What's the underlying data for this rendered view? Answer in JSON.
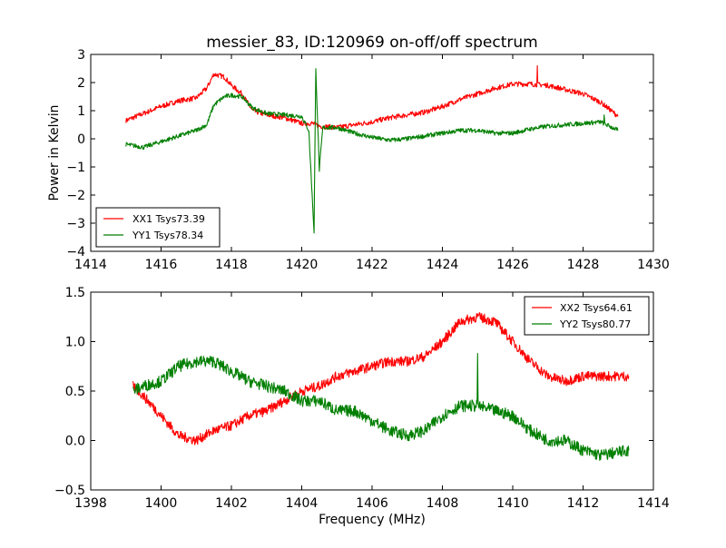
{
  "figure": {
    "title": "messier_83, ID:120969 on-off/off spectrum"
  },
  "chart_data": [
    {
      "type": "line",
      "title": "messier_83, ID:120969 on-off/off spectrum",
      "xlabel": "",
      "ylabel": "Power in Kelvin",
      "xlim": [
        1414,
        1430
      ],
      "ylim": [
        -4,
        3
      ],
      "xticks": [
        1414,
        1416,
        1418,
        1420,
        1422,
        1424,
        1426,
        1428,
        1430
      ],
      "yticks": [
        -4,
        -3,
        -2,
        -1,
        0,
        1,
        2,
        3
      ],
      "grid": false,
      "legend": {
        "placement": "lower-left"
      },
      "series": [
        {
          "name": "XX1 Tsys73.39",
          "color": "#ff0000",
          "x": [
            1415.0,
            1415.5,
            1416.0,
            1416.5,
            1417.0,
            1417.3,
            1417.5,
            1417.8,
            1418.0,
            1418.3,
            1418.6,
            1419.0,
            1419.5,
            1420.0,
            1420.3,
            1420.5,
            1421.0,
            1421.5,
            1422.0,
            1422.5,
            1423.0,
            1423.5,
            1424.0,
            1424.5,
            1425.0,
            1425.5,
            1426.0,
            1426.5,
            1427.0,
            1427.5,
            1428.0,
            1428.5,
            1429.0
          ],
          "y": [
            0.65,
            0.9,
            1.15,
            1.35,
            1.45,
            1.8,
            2.3,
            2.2,
            1.9,
            1.6,
            1.0,
            0.85,
            0.75,
            0.55,
            0.55,
            0.45,
            0.4,
            0.5,
            0.6,
            0.75,
            0.85,
            0.95,
            1.15,
            1.4,
            1.6,
            1.8,
            1.95,
            1.95,
            1.9,
            1.75,
            1.6,
            1.3,
            0.8
          ],
          "noise": 0.09,
          "spikes": [
            {
              "x": 1426.7,
              "y": 2.6
            }
          ]
        },
        {
          "name": "YY1 Tsys78.34",
          "color": "#007f00",
          "x": [
            1415.0,
            1415.5,
            1416.0,
            1416.5,
            1417.0,
            1417.3,
            1417.5,
            1417.8,
            1418.0,
            1418.3,
            1418.6,
            1419.0,
            1419.5,
            1420.0,
            1420.2,
            1420.35,
            1420.4,
            1420.5,
            1420.6,
            1421.0,
            1421.5,
            1422.0,
            1422.5,
            1423.0,
            1423.5,
            1424.0,
            1424.5,
            1425.0,
            1425.5,
            1426.0,
            1426.5,
            1427.0,
            1427.5,
            1428.0,
            1428.5,
            1429.0
          ],
          "y": [
            -0.2,
            -0.3,
            -0.1,
            0.1,
            0.3,
            0.5,
            1.2,
            1.5,
            1.55,
            1.5,
            1.1,
            0.9,
            0.85,
            0.8,
            0.3,
            -3.3,
            2.45,
            -1.1,
            0.4,
            0.4,
            0.2,
            0.05,
            -0.05,
            0.0,
            0.1,
            0.2,
            0.3,
            0.3,
            0.2,
            0.2,
            0.35,
            0.45,
            0.5,
            0.55,
            0.6,
            0.3
          ],
          "noise": 0.08,
          "spikes": [
            {
              "x": 1428.6,
              "y": 0.85
            }
          ]
        }
      ]
    },
    {
      "type": "line",
      "title": "",
      "xlabel": "Frequency (MHz)",
      "ylabel": "",
      "xlim": [
        1398,
        1414
      ],
      "ylim": [
        -0.5,
        1.5
      ],
      "xticks": [
        1398,
        1400,
        1402,
        1404,
        1406,
        1408,
        1410,
        1412,
        1414
      ],
      "yticks": [
        -0.5,
        0.0,
        0.5,
        1.0,
        1.5
      ],
      "grid": false,
      "legend": {
        "placement": "top-right"
      },
      "series": [
        {
          "name": "XX2 Tsys64.61",
          "color": "#ff0000",
          "x": [
            1399.2,
            1399.5,
            1400.0,
            1400.5,
            1401.0,
            1401.5,
            1402.0,
            1402.5,
            1403.0,
            1403.5,
            1404.0,
            1404.5,
            1405.0,
            1405.5,
            1406.0,
            1406.5,
            1407.0,
            1407.5,
            1408.0,
            1408.5,
            1409.0,
            1409.5,
            1410.0,
            1410.5,
            1411.0,
            1411.5,
            1412.0,
            1412.5,
            1413.3
          ],
          "y": [
            0.55,
            0.45,
            0.25,
            0.05,
            0.0,
            0.1,
            0.15,
            0.25,
            0.3,
            0.4,
            0.5,
            0.55,
            0.65,
            0.7,
            0.75,
            0.8,
            0.8,
            0.85,
            1.0,
            1.2,
            1.25,
            1.2,
            1.0,
            0.8,
            0.65,
            0.6,
            0.65,
            0.65,
            0.65
          ],
          "noise": 0.05
        },
        {
          "name": "YY2 Tsys80.77",
          "color": "#007f00",
          "x": [
            1399.2,
            1399.5,
            1400.0,
            1400.5,
            1401.0,
            1401.5,
            1402.0,
            1402.5,
            1403.0,
            1403.5,
            1404.0,
            1404.5,
            1405.0,
            1405.5,
            1406.0,
            1406.5,
            1407.0,
            1407.5,
            1408.0,
            1408.5,
            1409.0,
            1409.5,
            1410.0,
            1410.5,
            1411.0,
            1411.5,
            1412.0,
            1412.5,
            1413.3
          ],
          "y": [
            0.5,
            0.55,
            0.6,
            0.75,
            0.8,
            0.8,
            0.7,
            0.6,
            0.55,
            0.5,
            0.4,
            0.4,
            0.3,
            0.3,
            0.2,
            0.1,
            0.05,
            0.1,
            0.25,
            0.35,
            0.35,
            0.3,
            0.25,
            0.1,
            0.0,
            0.0,
            -0.1,
            -0.15,
            -0.1
          ],
          "noise": 0.06,
          "spikes": [
            {
              "x": 1409.0,
              "y": 0.88
            }
          ]
        }
      ]
    }
  ]
}
